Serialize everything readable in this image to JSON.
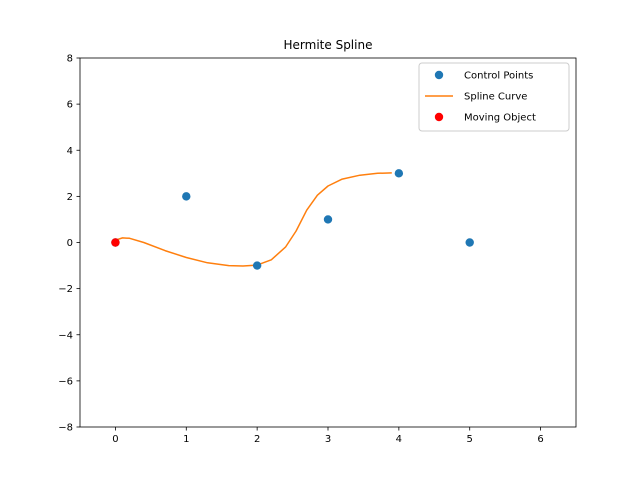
{
  "chart_data": {
    "type": "line",
    "title": "Hermite Spline",
    "xlabel": "",
    "ylabel": "",
    "xlim": [
      -0.5,
      6.5
    ],
    "ylim": [
      -8,
      8
    ],
    "xticks": [
      0,
      1,
      2,
      3,
      4,
      5,
      6
    ],
    "yticks": [
      -8,
      -6,
      -4,
      -2,
      0,
      2,
      4,
      6,
      8
    ],
    "grid": false,
    "legend_position": "top-right",
    "series": [
      {
        "name": "Control Points",
        "kind": "scatter",
        "color": "#1f77b4",
        "x": [
          0,
          1,
          2,
          3,
          4,
          5
        ],
        "y": [
          0,
          2,
          -1,
          1,
          3,
          0
        ]
      },
      {
        "name": "Spline Curve",
        "kind": "line",
        "color": "#ff7f0e",
        "x": [
          0,
          0.1,
          0.2,
          0.4,
          0.7,
          1.0,
          1.3,
          1.6,
          1.8,
          2.0,
          2.2,
          2.4,
          2.55,
          2.7,
          2.85,
          3.0,
          3.2,
          3.45,
          3.7,
          3.9
        ],
        "y": [
          0.1,
          0.2,
          0.18,
          0.0,
          -0.35,
          -0.65,
          -0.88,
          -1.0,
          -1.02,
          -0.98,
          -0.75,
          -0.2,
          0.5,
          1.4,
          2.05,
          2.45,
          2.75,
          2.92,
          3.0,
          3.02
        ]
      },
      {
        "name": "Moving Object",
        "kind": "scatter",
        "color": "#ff0000",
        "x": [
          0
        ],
        "y": [
          0
        ]
      }
    ]
  }
}
